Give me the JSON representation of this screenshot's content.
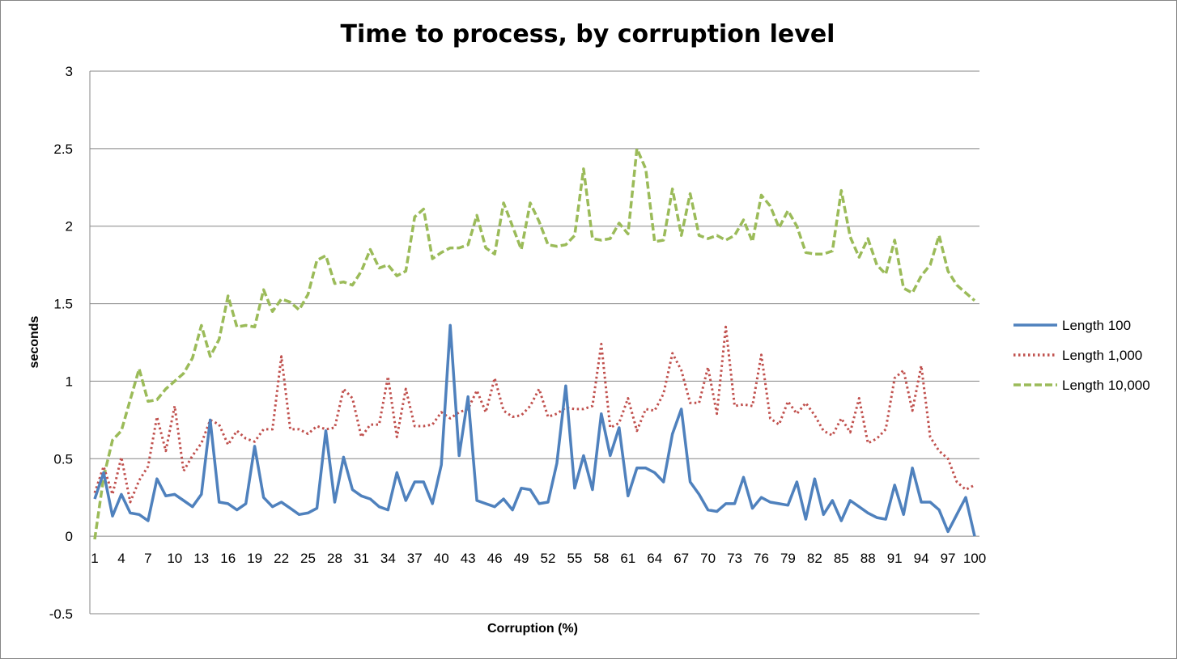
{
  "chart_data": {
    "type": "line",
    "title": "Time to process, by corruption level",
    "xlabel": "Corruption  (%)",
    "ylabel": "seconds",
    "ylim": [
      -0.5,
      3
    ],
    "yticks": [
      "-0.5",
      "0",
      "0.5",
      "1",
      "1.5",
      "2",
      "2.5",
      "3"
    ],
    "x_tick_labels": [
      "1",
      "4",
      "7",
      "10",
      "13",
      "16",
      "19",
      "22",
      "25",
      "28",
      "31",
      "34",
      "37",
      "40",
      "43",
      "46",
      "49",
      "52",
      "55",
      "58",
      "61",
      "64",
      "67",
      "70",
      "73",
      "76",
      "79",
      "82",
      "85",
      "88",
      "91",
      "94",
      "97",
      "100"
    ],
    "grid": "horizontal",
    "legend_position": "right",
    "x": [
      1,
      2,
      3,
      4,
      5,
      6,
      7,
      8,
      9,
      10,
      11,
      12,
      13,
      14,
      15,
      16,
      17,
      18,
      19,
      20,
      21,
      22,
      23,
      24,
      25,
      26,
      27,
      28,
      29,
      30,
      31,
      32,
      33,
      34,
      35,
      36,
      37,
      38,
      39,
      40,
      41,
      42,
      43,
      44,
      45,
      46,
      47,
      48,
      49,
      50,
      51,
      52,
      53,
      54,
      55,
      56,
      57,
      58,
      59,
      60,
      61,
      62,
      63,
      64,
      65,
      66,
      67,
      68,
      69,
      70,
      71,
      72,
      73,
      74,
      75,
      76,
      77,
      78,
      79,
      80,
      81,
      82,
      83,
      84,
      85,
      86,
      87,
      88,
      89,
      90,
      91,
      92,
      93,
      94,
      95,
      96,
      97,
      98,
      99,
      100
    ],
    "series": [
      {
        "name": "Length 100",
        "color": "#4f81bd",
        "style": "solid",
        "values": [
          0.24,
          0.41,
          0.13,
          0.27,
          0.15,
          0.14,
          0.1,
          0.37,
          0.26,
          0.27,
          0.23,
          0.19,
          0.27,
          0.75,
          0.22,
          0.21,
          0.17,
          0.21,
          0.58,
          0.25,
          0.19,
          0.22,
          0.18,
          0.14,
          0.15,
          0.18,
          0.68,
          0.22,
          0.51,
          0.3,
          0.26,
          0.24,
          0.19,
          0.17,
          0.41,
          0.23,
          0.35,
          0.35,
          0.21,
          0.46,
          1.36,
          0.52,
          0.9,
          0.23,
          0.21,
          0.19,
          0.24,
          0.17,
          0.31,
          0.3,
          0.21,
          0.22,
          0.47,
          0.97,
          0.31,
          0.52,
          0.3,
          0.79,
          0.52,
          0.7,
          0.26,
          0.44,
          0.44,
          0.41,
          0.35,
          0.66,
          0.82,
          0.35,
          0.27,
          0.17,
          0.16,
          0.21,
          0.21,
          0.38,
          0.18,
          0.25,
          0.22,
          0.21,
          0.2,
          0.35,
          0.11,
          0.37,
          0.14,
          0.23,
          0.1,
          0.23,
          0.19,
          0.15,
          0.12,
          0.11,
          0.33,
          0.14,
          0.44,
          0.22,
          0.22,
          0.17,
          0.03,
          0.14,
          0.25,
          0.0
        ]
      },
      {
        "name": "Length 1,000",
        "color": "#c0504d",
        "style": "dotted",
        "values": [
          0.28,
          0.45,
          0.27,
          0.51,
          0.22,
          0.36,
          0.45,
          0.77,
          0.55,
          0.84,
          0.42,
          0.52,
          0.6,
          0.75,
          0.72,
          0.59,
          0.68,
          0.63,
          0.61,
          0.69,
          0.69,
          1.16,
          0.69,
          0.69,
          0.66,
          0.71,
          0.69,
          0.7,
          0.95,
          0.89,
          0.64,
          0.72,
          0.72,
          1.03,
          0.64,
          0.95,
          0.71,
          0.71,
          0.72,
          0.8,
          0.76,
          0.8,
          0.82,
          0.94,
          0.8,
          1.02,
          0.81,
          0.77,
          0.78,
          0.84,
          0.95,
          0.77,
          0.79,
          0.83,
          0.82,
          0.82,
          0.84,
          1.24,
          0.7,
          0.73,
          0.89,
          0.68,
          0.82,
          0.81,
          0.92,
          1.18,
          1.07,
          0.86,
          0.86,
          1.09,
          0.79,
          1.35,
          0.84,
          0.85,
          0.84,
          1.17,
          0.76,
          0.72,
          0.87,
          0.79,
          0.86,
          0.78,
          0.68,
          0.65,
          0.76,
          0.67,
          0.89,
          0.6,
          0.63,
          0.69,
          1.02,
          1.07,
          0.81,
          1.1,
          0.64,
          0.55,
          0.5,
          0.35,
          0.3,
          0.33
        ]
      },
      {
        "name": "Length 10,000",
        "color": "#9bbb59",
        "style": "dashed",
        "values": [
          -0.02,
          0.38,
          0.62,
          0.68,
          0.88,
          1.08,
          0.87,
          0.88,
          0.95,
          1.0,
          1.05,
          1.15,
          1.36,
          1.16,
          1.27,
          1.55,
          1.35,
          1.36,
          1.35,
          1.59,
          1.45,
          1.53,
          1.51,
          1.46,
          1.56,
          1.78,
          1.81,
          1.63,
          1.64,
          1.62,
          1.71,
          1.85,
          1.73,
          1.75,
          1.68,
          1.71,
          2.06,
          2.11,
          1.79,
          1.83,
          1.86,
          1.86,
          1.88,
          2.07,
          1.86,
          1.82,
          2.15,
          2.0,
          1.85,
          2.15,
          2.03,
          1.88,
          1.87,
          1.88,
          1.94,
          2.37,
          1.92,
          1.91,
          1.92,
          2.02,
          1.95,
          2.5,
          2.37,
          1.9,
          1.91,
          2.24,
          1.94,
          2.21,
          1.94,
          1.92,
          1.94,
          1.91,
          1.94,
          2.04,
          1.9,
          2.2,
          2.13,
          1.99,
          2.1,
          2.0,
          1.83,
          1.82,
          1.82,
          1.84,
          2.23,
          1.93,
          1.8,
          1.92,
          1.75,
          1.69,
          1.91,
          1.6,
          1.57,
          1.68,
          1.75,
          1.94,
          1.71,
          1.62,
          1.57,
          1.52
        ]
      }
    ]
  }
}
